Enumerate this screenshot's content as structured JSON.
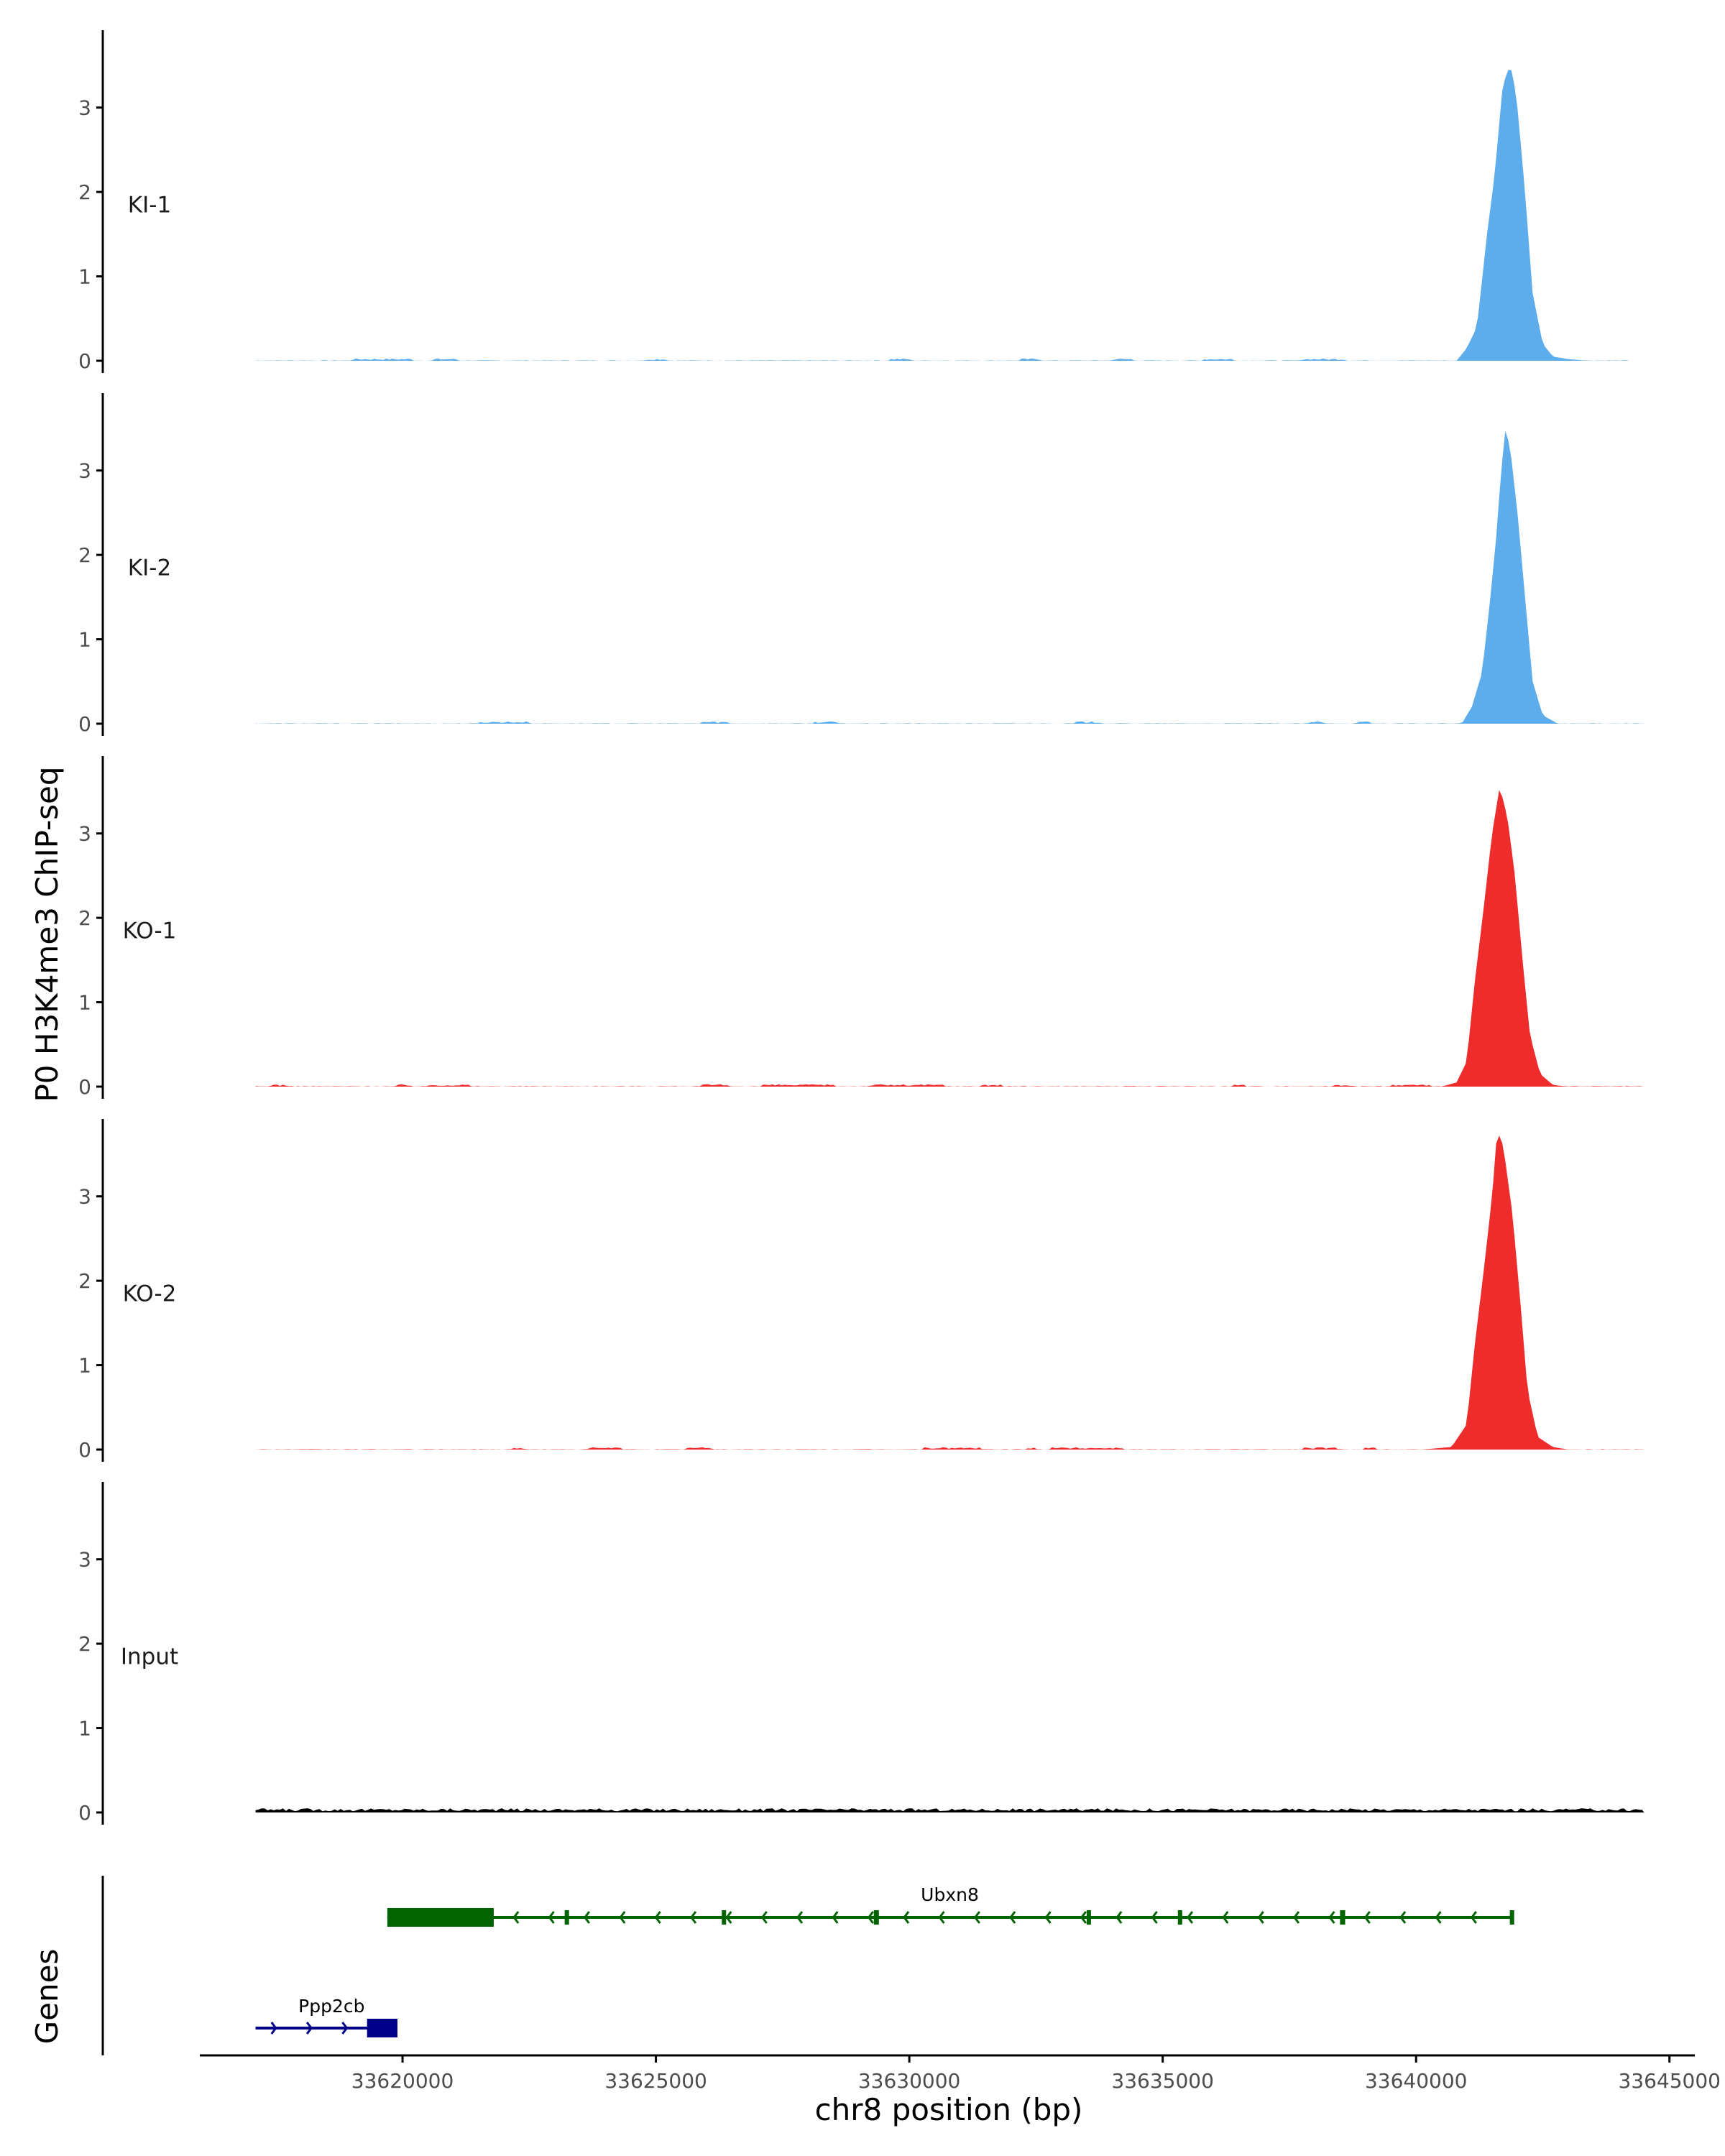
{
  "figure": {
    "y_axis_title": "P0 H3K4me3 ChIP-seq",
    "x_axis_title": "chr8 position (bp)",
    "genes_axis_title": "Genes"
  },
  "colors": {
    "KI": "#5DADEC",
    "KO": "#EE2C2C",
    "Input": "#000000",
    "Ubxn8": "#006400",
    "Ppp2cb": "#00008B",
    "axis": "#000000"
  },
  "chart_data": {
    "type": "area",
    "xlim": [
      33616000,
      33645500
    ],
    "ylim": [
      0,
      3.9
    ],
    "x_ticks": [
      33620000,
      33625000,
      33630000,
      33635000,
      33640000,
      33645000
    ],
    "x_tick_labels": [
      "33620000",
      "33625000",
      "33630000",
      "33635000",
      "33640000",
      "33645000"
    ],
    "y_ticks": [
      0,
      1,
      2,
      3
    ],
    "y_tick_labels": [
      "0",
      "1",
      "2",
      "3"
    ],
    "grid": false,
    "tracks": [
      {
        "name": "KI-1",
        "color": "#5DADEC",
        "range": [
          33617100,
          33644200
        ],
        "peak": [
          [
            33640800,
            0
          ],
          [
            33641000,
            0.15
          ],
          [
            33641200,
            0.4
          ],
          [
            33641400,
            1.5
          ],
          [
            33641550,
            2.2
          ],
          [
            33641700,
            3.2
          ],
          [
            33641800,
            3.45
          ],
          [
            33641900,
            3.44
          ],
          [
            33642000,
            3.0
          ],
          [
            33642150,
            2.0
          ],
          [
            33642300,
            0.8
          ],
          [
            33642500,
            0.2
          ],
          [
            33642700,
            0.05
          ],
          [
            33643000,
            0.02
          ],
          [
            33643400,
            0
          ]
        ],
        "noise_gaps": [
          [
            33619000,
            33620200
          ],
          [
            33620600,
            33621100
          ],
          [
            33624800,
            33625200
          ],
          [
            33629600,
            33630000
          ],
          [
            33632200,
            33632600
          ],
          [
            33634000,
            33634400
          ],
          [
            33635800,
            33636400
          ],
          [
            33637700,
            33638600
          ]
        ]
      },
      {
        "name": "KI-2",
        "color": "#5DADEC",
        "range": [
          33617100,
          33644500
        ],
        "peak": [
          [
            33640900,
            0
          ],
          [
            33641100,
            0.2
          ],
          [
            33641300,
            0.6
          ],
          [
            33641450,
            1.4
          ],
          [
            33641580,
            2.2
          ],
          [
            33641680,
            3.0
          ],
          [
            33641760,
            3.47
          ],
          [
            33641850,
            3.3
          ],
          [
            33642000,
            2.5
          ],
          [
            33642150,
            1.5
          ],
          [
            33642300,
            0.5
          ],
          [
            33642500,
            0.1
          ],
          [
            33642800,
            0
          ]
        ],
        "noise_gaps": [
          [
            33621500,
            33622500
          ],
          [
            33625900,
            33626400
          ],
          [
            33628100,
            33628600
          ],
          [
            33633300,
            33633800
          ],
          [
            33637900,
            33638200
          ],
          [
            33638800,
            33639100
          ]
        ]
      },
      {
        "name": "KO-1",
        "color": "#EE2C2C",
        "range": [
          33617100,
          33644500
        ],
        "peak": [
          [
            33640500,
            0
          ],
          [
            33640800,
            0.05
          ],
          [
            33641000,
            0.3
          ],
          [
            33641150,
            1.2
          ],
          [
            33641350,
            2.2
          ],
          [
            33641500,
            3.0
          ],
          [
            33641650,
            3.55
          ],
          [
            33641800,
            3.2
          ],
          [
            33641950,
            2.5
          ],
          [
            33642100,
            1.5
          ],
          [
            33642250,
            0.6
          ],
          [
            33642450,
            0.15
          ],
          [
            33642700,
            0.02
          ],
          [
            33643000,
            0
          ]
        ],
        "noise_gaps": [
          [
            33617400,
            33617700
          ],
          [
            33619900,
            33620200
          ],
          [
            33620500,
            33621300
          ],
          [
            33625900,
            33626400
          ],
          [
            33627100,
            33628500
          ],
          [
            33629200,
            33630700
          ],
          [
            33631400,
            33631800
          ],
          [
            33636400,
            33636600
          ],
          [
            33638400,
            33638800
          ],
          [
            33639500,
            33640300
          ]
        ]
      },
      {
        "name": "KO-2",
        "color": "#EE2C2C",
        "range": [
          33617100,
          33644500
        ],
        "peak": [
          [
            33640100,
            0
          ],
          [
            33640700,
            0.03
          ],
          [
            33641000,
            0.3
          ],
          [
            33641150,
            1.2
          ],
          [
            33641350,
            2.2
          ],
          [
            33641500,
            3.0
          ],
          [
            33641600,
            3.78
          ],
          [
            33641720,
            3.6
          ],
          [
            33641900,
            2.8
          ],
          [
            33642050,
            1.8
          ],
          [
            33642200,
            0.7
          ],
          [
            33642400,
            0.15
          ],
          [
            33642700,
            0.03
          ],
          [
            33643000,
            0
          ]
        ],
        "noise_gaps": [
          [
            33622200,
            33622400
          ],
          [
            33623700,
            33624300
          ],
          [
            33625600,
            33626100
          ],
          [
            33630300,
            33631400
          ],
          [
            33632300,
            33632500
          ],
          [
            33632800,
            33634200
          ],
          [
            33637800,
            33638400
          ],
          [
            33639000,
            33639200
          ]
        ]
      },
      {
        "name": "Input",
        "color": "#000000",
        "range": [
          33617100,
          33644500
        ],
        "peak": [],
        "noise_gaps": []
      }
    ],
    "genes": [
      {
        "name": "Ppp2cb",
        "color": "#00008B",
        "strand": "+",
        "start": 33617100,
        "end": 33619900,
        "exons": [
          [
            33619300,
            33619900
          ]
        ],
        "row": 2
      },
      {
        "name": "Ubxn8",
        "color": "#006400",
        "strand": "-",
        "start": 33619700,
        "end": 33641900,
        "exons": [
          [
            33619700,
            33621800
          ],
          [
            33623200,
            33623280
          ],
          [
            33626300,
            33626350
          ],
          [
            33629300,
            33629400
          ],
          [
            33633500,
            33633580
          ],
          [
            33635300,
            33635360
          ],
          [
            33638500,
            33638600
          ],
          [
            33641850,
            33641900
          ]
        ],
        "row": 1
      }
    ]
  }
}
